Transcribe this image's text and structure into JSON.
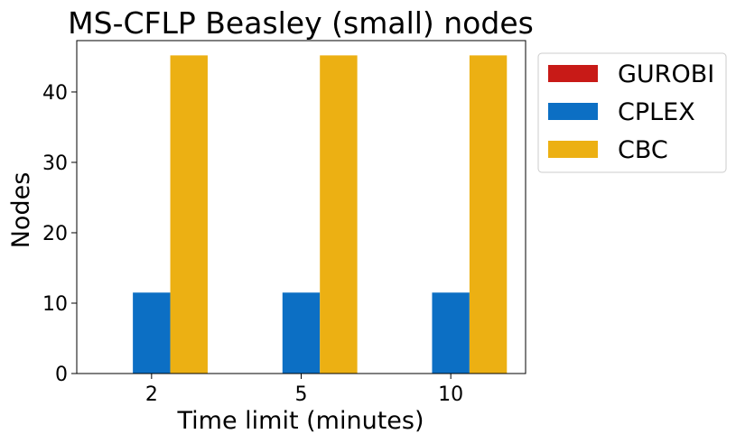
{
  "chart_data": {
    "type": "bar",
    "title": "MS-CFLP Beasley (small) nodes",
    "xlabel": "Time limit (minutes)",
    "ylabel": "Nodes",
    "categories": [
      "2",
      "5",
      "10"
    ],
    "ylim": [
      0,
      47.3
    ],
    "yticks": [
      0,
      10,
      20,
      30,
      40
    ],
    "grid": false,
    "legend_position": "outside-top-right",
    "series": [
      {
        "name": "GUROBI",
        "color": "#c81a17",
        "values": [
          0,
          0,
          0
        ]
      },
      {
        "name": "CPLEX",
        "color": "#0c6fc4",
        "values": [
          11.5,
          11.5,
          11.5
        ]
      },
      {
        "name": "CBC",
        "color": "#ecb013",
        "values": [
          45.2,
          45.2,
          45.2
        ]
      }
    ]
  }
}
